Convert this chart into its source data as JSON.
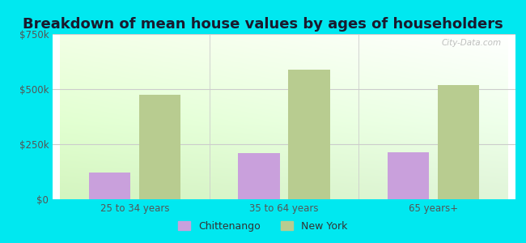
{
  "title": "Breakdown of mean house values by ages of householders",
  "categories": [
    "25 to 34 years",
    "35 to 64 years",
    "65 years+"
  ],
  "chittenango_values": [
    120000,
    210000,
    215000
  ],
  "newyork_values": [
    475000,
    590000,
    520000
  ],
  "ylim": [
    0,
    750000
  ],
  "yticks": [
    0,
    250000,
    500000,
    750000
  ],
  "ytick_labels": [
    "$0",
    "$250k",
    "$500k",
    "$750k"
  ],
  "chittenango_color": "#c9a0dc",
  "newyork_color": "#b8cc90",
  "background_outer": "#00e8f0",
  "title_fontsize": 13,
  "legend_labels": [
    "Chittenango",
    "New York"
  ],
  "bar_width": 0.28,
  "watermark": "City-Data.com",
  "grid_color": "#cccccc",
  "tick_color": "#555555"
}
